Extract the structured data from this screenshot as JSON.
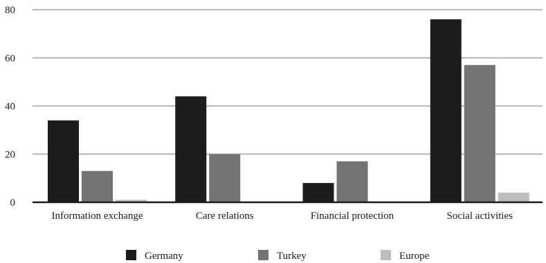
{
  "chart_data": {
    "type": "bar",
    "title": "",
    "xlabel": "",
    "ylabel": "",
    "ylim": [
      0,
      80
    ],
    "yticks": [
      0,
      20,
      40,
      60,
      80
    ],
    "grid": true,
    "legend_position": "bottom",
    "categories": [
      "Information exchange",
      "Care relations",
      "Financial protection",
      "Social activities"
    ],
    "series": [
      {
        "name": "Germany",
        "color": "#1c1c1c",
        "values": [
          34,
          44,
          8,
          76
        ]
      },
      {
        "name": "Turkey",
        "color": "#737373",
        "values": [
          13,
          20,
          17,
          57
        ]
      },
      {
        "name": "Europe",
        "color": "#bdbdbd",
        "values": [
          1,
          0,
          0,
          4
        ]
      }
    ]
  }
}
